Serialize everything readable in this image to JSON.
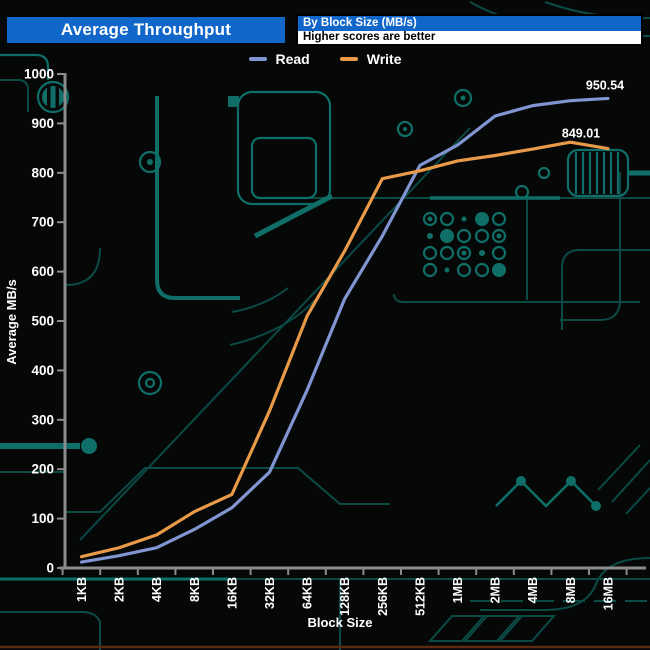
{
  "header": {
    "title": "Average Throughput",
    "info_title": "By Block Size (MB/s)",
    "info_note": "Higher scores are better"
  },
  "chart_data": {
    "type": "line",
    "title": "Average Throughput",
    "subtitle": "By Block Size (MB/s)",
    "note": "Higher scores are better",
    "categories": [
      "1KB",
      "2KB",
      "4KB",
      "8KB",
      "16KB",
      "32KB",
      "64KB",
      "128KB",
      "256KB",
      "512KB",
      "1MB",
      "2MB",
      "4MB",
      "8MB",
      "16MB"
    ],
    "series": [
      {
        "name": "Read",
        "color": "#8095d1",
        "values": [
          12,
          25,
          41,
          78,
          122,
          194,
          360,
          545,
          672,
          815,
          856,
          915,
          936,
          946,
          950.54
        ],
        "end_label": "950.54"
      },
      {
        "name": "Write",
        "color": "#e89a48",
        "values": [
          23,
          41,
          67,
          114,
          149,
          318,
          510,
          642,
          788,
          804,
          824,
          835,
          848,
          862,
          849.01
        ],
        "end_label": "849.01"
      }
    ],
    "xlabel": "Block Size",
    "ylabel": "Average MB/s",
    "ylim": [
      0,
      1000
    ],
    "ytick_step": 100,
    "grid": false,
    "legend_position": "top-center"
  },
  "colors": {
    "header_bar": "#1166ca",
    "info_note_bg": "#ffffff",
    "axis": "#8c8c8c",
    "text": "#ffffff",
    "background": "#060808",
    "trace_dim": "#0b4a45",
    "trace_bright": "#0f6f68",
    "bottom_line": "#5c2b10"
  }
}
